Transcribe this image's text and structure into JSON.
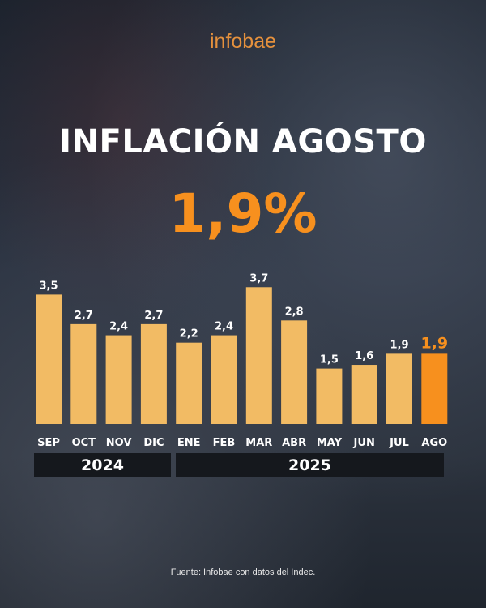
{
  "brand": "infobae",
  "title": "INFLACIÓN AGOSTO",
  "headline_value": "1,9%",
  "source": "Fuente: Infobae con datos del Indec.",
  "colors": {
    "bar": "#f2bb64",
    "highlight": "#f7901e",
    "brand": "#e5913d"
  },
  "chart_data": {
    "type": "bar",
    "categories": [
      "SEP",
      "OCT",
      "NOV",
      "DIC",
      "ENE",
      "FEB",
      "MAR",
      "ABR",
      "MAY",
      "JUN",
      "JUL",
      "AGO"
    ],
    "values": [
      3.5,
      2.7,
      2.4,
      2.7,
      2.2,
      2.4,
      3.7,
      2.8,
      1.5,
      1.6,
      1.9,
      1.9
    ],
    "labels": [
      "3,5",
      "2,7",
      "2,4",
      "2,7",
      "2,2",
      "2,4",
      "3,7",
      "2,8",
      "1,5",
      "1,6",
      "1,9",
      "1,9"
    ],
    "highlight": "AGO",
    "groups": [
      {
        "label": "2024",
        "span": [
          "SEP",
          "DIC"
        ]
      },
      {
        "label": "2025",
        "span": [
          "ENE",
          "AGO"
        ]
      }
    ],
    "grid": false
  }
}
